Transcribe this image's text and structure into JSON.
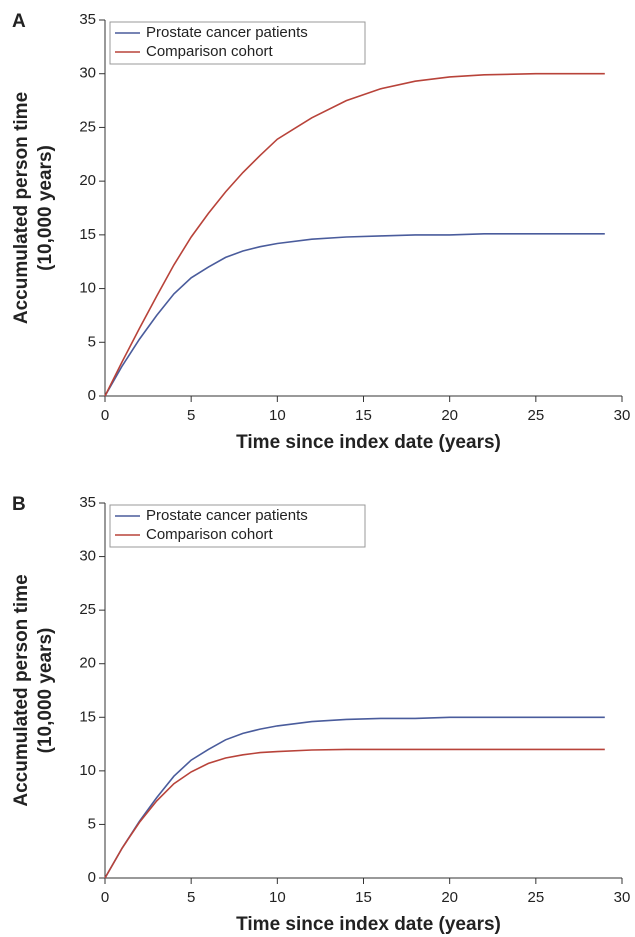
{
  "chart_data": [
    {
      "type": "line",
      "panel_label": "A",
      "x_label": "Time since index date (years)",
      "y_label": [
        "Accumulated person time",
        "(10,000 years)"
      ],
      "x": [
        0,
        1,
        2,
        3,
        4,
        5,
        6,
        7,
        8,
        9,
        10,
        12,
        14,
        16,
        18,
        20,
        22,
        25,
        29
      ],
      "series": [
        {
          "name": "Prostate cancer patients",
          "color": "#4a5c9c",
          "values": [
            0,
            2.8,
            5.3,
            7.5,
            9.5,
            11,
            12,
            12.9,
            13.5,
            13.9,
            14.2,
            14.6,
            14.8,
            14.9,
            15,
            15,
            15.1,
            15.1,
            15.1
          ]
        },
        {
          "name": "Comparison cohort",
          "color": "#b8433a",
          "values": [
            0,
            3.2,
            6.3,
            9.3,
            12.2,
            14.8,
            17,
            19,
            20.8,
            22.4,
            23.9,
            25.9,
            27.5,
            28.6,
            29.3,
            29.7,
            29.9,
            30,
            30
          ]
        }
      ],
      "xlim": [
        0,
        30
      ],
      "xticks": [
        0,
        5,
        10,
        15,
        20,
        25,
        30
      ],
      "ylim": [
        0,
        35
      ],
      "yticks": [
        0,
        5,
        10,
        15,
        20,
        25,
        30,
        35
      ],
      "legend": "upper left"
    },
    {
      "type": "line",
      "panel_label": "B",
      "x_label": "Time since index date (years)",
      "y_label": [
        "Accumulated person time",
        "(10,000 years)"
      ],
      "x": [
        0,
        1,
        2,
        3,
        4,
        5,
        6,
        7,
        8,
        9,
        10,
        12,
        14,
        16,
        18,
        20,
        22,
        25,
        29
      ],
      "series": [
        {
          "name": "Prostate cancer patients",
          "color": "#4a5c9c",
          "values": [
            0,
            2.8,
            5.3,
            7.5,
            9.5,
            11,
            12,
            12.9,
            13.5,
            13.9,
            14.2,
            14.6,
            14.8,
            14.9,
            14.9,
            15,
            15,
            15,
            15
          ]
        },
        {
          "name": "Comparison cohort",
          "color": "#b8433a",
          "values": [
            0,
            2.8,
            5.2,
            7.2,
            8.8,
            9.9,
            10.7,
            11.2,
            11.5,
            11.7,
            11.8,
            11.95,
            12,
            12,
            12,
            12,
            12,
            12,
            12
          ]
        }
      ],
      "xlim": [
        0,
        30
      ],
      "xticks": [
        0,
        5,
        10,
        15,
        20,
        25,
        30
      ],
      "ylim": [
        0,
        35
      ],
      "yticks": [
        0,
        5,
        10,
        15,
        20,
        25,
        30,
        35
      ],
      "legend": "upper left"
    }
  ]
}
